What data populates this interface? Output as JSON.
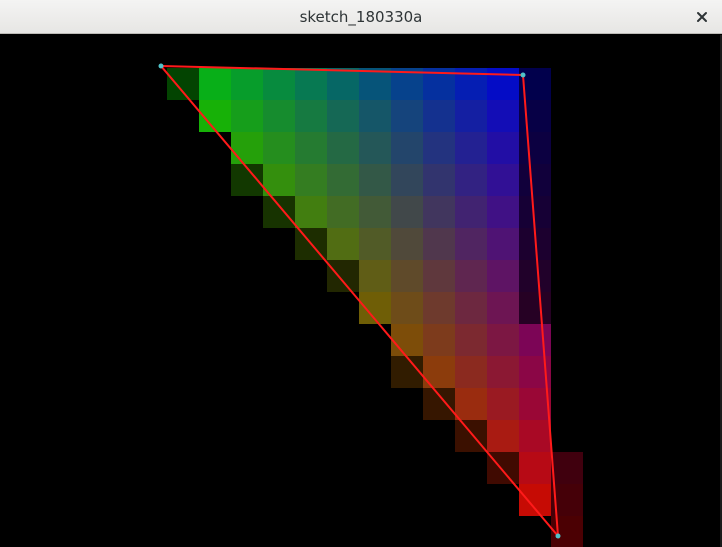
{
  "window": {
    "title": "sketch_180330a",
    "close_icon": "close-icon"
  },
  "canvas": {
    "background": "#000000",
    "outline_color": "#ff0000",
    "vertex_marker_color": "#4fc3c9"
  }
}
